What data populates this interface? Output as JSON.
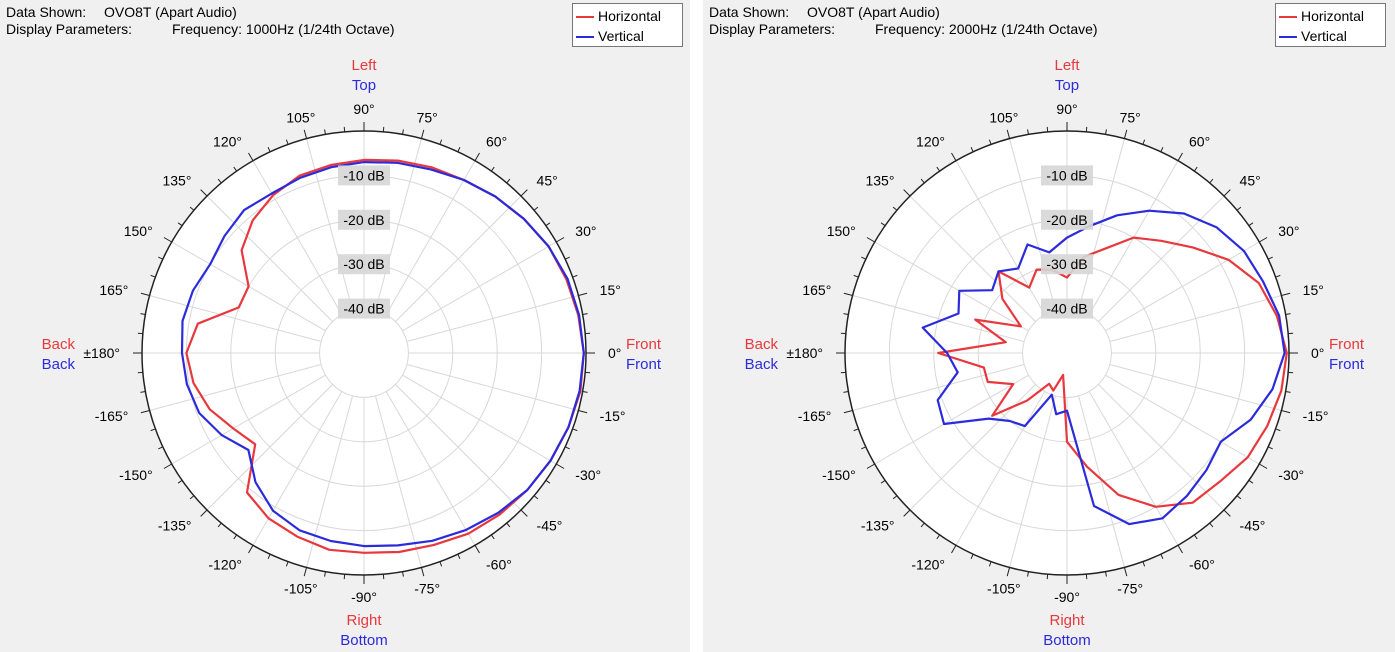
{
  "colors": {
    "horizontal": "#e8383d",
    "vertical": "#2b2bdc",
    "background": "#f0f0f0",
    "plot_face": "#ffffff",
    "grid": "#d8d8d8"
  },
  "header": {
    "data_shown_label": "Data Shown:",
    "display_params_label": "Display Parameters:"
  },
  "chart_data": [
    {
      "type": "polar",
      "data_shown": "OVO8T (Apart Audio)",
      "display_parameters": "Frequency: 1000Hz (1/24th Octave)",
      "legend": [
        {
          "name": "Horizontal",
          "color": "#e8383d"
        },
        {
          "name": "Vertical",
          "color": "#2b2bdc"
        }
      ],
      "direction_labels": {
        "top": [
          {
            "text": "Left",
            "color": "#e8383d"
          },
          {
            "text": "Top",
            "color": "#2b2bdc"
          }
        ],
        "bottom": [
          {
            "text": "Right",
            "color": "#e8383d"
          },
          {
            "text": "Bottom",
            "color": "#2b2bdc"
          }
        ],
        "left": [
          {
            "text": "Back",
            "color": "#e8383d"
          },
          {
            "text": "Back",
            "color": "#2b2bdc"
          }
        ],
        "right": [
          {
            "text": "Front",
            "color": "#e8383d"
          },
          {
            "text": "Front",
            "color": "#2b2bdc"
          }
        ]
      },
      "angle_labels": [
        {
          "deg": 0,
          "text": "0°"
        },
        {
          "deg": 15,
          "text": "15°"
        },
        {
          "deg": 30,
          "text": "30°"
        },
        {
          "deg": 45,
          "text": "45°"
        },
        {
          "deg": 60,
          "text": "60°"
        },
        {
          "deg": 75,
          "text": "75°"
        },
        {
          "deg": 90,
          "text": "90°"
        },
        {
          "deg": 105,
          "text": "105°"
        },
        {
          "deg": 120,
          "text": "120°"
        },
        {
          "deg": 135,
          "text": "135°"
        },
        {
          "deg": 150,
          "text": "150°"
        },
        {
          "deg": 165,
          "text": "165°"
        },
        {
          "deg": 180,
          "text": "±180°"
        },
        {
          "deg": -165,
          "text": "-165°"
        },
        {
          "deg": -150,
          "text": "-150°"
        },
        {
          "deg": -135,
          "text": "-135°"
        },
        {
          "deg": -120,
          "text": "-120°"
        },
        {
          "deg": -105,
          "text": "-105°"
        },
        {
          "deg": -90,
          "text": "-90°"
        },
        {
          "deg": -75,
          "text": "-75°"
        },
        {
          "deg": -60,
          "text": "-60°"
        },
        {
          "deg": -45,
          "text": "-45°"
        },
        {
          "deg": -30,
          "text": "-30°"
        },
        {
          "deg": -15,
          "text": "-15°"
        }
      ],
      "radial_ticks": [
        {
          "db": -10,
          "text": "-10 dB"
        },
        {
          "db": -20,
          "text": "-20 dB"
        },
        {
          "db": -30,
          "text": "-30 dB"
        },
        {
          "db": -40,
          "text": "-40 dB"
        }
      ],
      "r_range_db": [
        -50,
        0
      ],
      "angles": [
        0,
        10,
        20,
        30,
        40,
        50,
        60,
        70,
        80,
        90,
        100,
        110,
        120,
        130,
        140,
        150,
        160,
        170,
        180,
        190,
        200,
        210,
        220,
        230,
        240,
        250,
        260,
        270,
        280,
        290,
        300,
        310,
        320,
        330,
        340,
        350
      ],
      "series": [
        {
          "name": "Horizontal",
          "color": "#e8383d",
          "values": [
            -0.5,
            -1,
            -1.5,
            -2,
            -3,
            -4,
            -5,
            -5.5,
            -6,
            -6.5,
            -7,
            -7.5,
            -9,
            -11,
            -14,
            -20,
            -20,
            -12,
            -10,
            -11,
            -13,
            -16,
            -18,
            -9,
            -7,
            -6,
            -5,
            -5,
            -4.5,
            -4,
            -3,
            -2.5,
            -2,
            -1.5,
            -1,
            -0.5
          ]
        },
        {
          "name": "Vertical",
          "color": "#2b2bdc",
          "values": [
            -0.5,
            -0.8,
            -1.2,
            -2,
            -3,
            -4,
            -5,
            -6,
            -6.5,
            -7,
            -7.5,
            -8,
            -8.5,
            -8,
            -9,
            -10,
            -9,
            -8.5,
            -9,
            -9.5,
            -10.5,
            -13,
            -16,
            -12,
            -9,
            -7.5,
            -7,
            -6.5,
            -6,
            -5,
            -4,
            -3,
            -2,
            -1.5,
            -1,
            -0.7
          ]
        }
      ]
    },
    {
      "type": "polar",
      "data_shown": "OVO8T (Apart Audio)",
      "display_parameters": "Frequency: 2000Hz (1/24th Octave)",
      "legend": [
        {
          "name": "Horizontal",
          "color": "#e8383d"
        },
        {
          "name": "Vertical",
          "color": "#2b2bdc"
        }
      ],
      "direction_labels": {
        "top": [
          {
            "text": "Left",
            "color": "#e8383d"
          },
          {
            "text": "Top",
            "color": "#2b2bdc"
          }
        ],
        "bottom": [
          {
            "text": "Right",
            "color": "#e8383d"
          },
          {
            "text": "Bottom",
            "color": "#2b2bdc"
          }
        ],
        "left": [
          {
            "text": "Back",
            "color": "#e8383d"
          },
          {
            "text": "Back",
            "color": "#2b2bdc"
          }
        ],
        "right": [
          {
            "text": "Front",
            "color": "#e8383d"
          },
          {
            "text": "Front",
            "color": "#2b2bdc"
          }
        ]
      },
      "angle_labels": [
        {
          "deg": 0,
          "text": "0°"
        },
        {
          "deg": 15,
          "text": "15°"
        },
        {
          "deg": 30,
          "text": "30°"
        },
        {
          "deg": 45,
          "text": "45°"
        },
        {
          "deg": 60,
          "text": "60°"
        },
        {
          "deg": 75,
          "text": "75°"
        },
        {
          "deg": 90,
          "text": "90°"
        },
        {
          "deg": 105,
          "text": "105°"
        },
        {
          "deg": 120,
          "text": "120°"
        },
        {
          "deg": 135,
          "text": "135°"
        },
        {
          "deg": 150,
          "text": "150°"
        },
        {
          "deg": 165,
          "text": "165°"
        },
        {
          "deg": 180,
          "text": "±180°"
        },
        {
          "deg": -165,
          "text": "-165°"
        },
        {
          "deg": -150,
          "text": "-150°"
        },
        {
          "deg": -135,
          "text": "-135°"
        },
        {
          "deg": -120,
          "text": "-120°"
        },
        {
          "deg": -105,
          "text": "-105°"
        },
        {
          "deg": -90,
          "text": "-90°"
        },
        {
          "deg": -75,
          "text": "-75°"
        },
        {
          "deg": -60,
          "text": "-60°"
        },
        {
          "deg": -45,
          "text": "-45°"
        },
        {
          "deg": -30,
          "text": "-30°"
        },
        {
          "deg": -15,
          "text": "-15°"
        }
      ],
      "radial_ticks": [
        {
          "db": -10,
          "text": "-10 dB"
        },
        {
          "db": -20,
          "text": "-20 dB"
        },
        {
          "db": -30,
          "text": "-30 dB"
        },
        {
          "db": -40,
          "text": "-40 dB"
        }
      ],
      "r_range_db": [
        -50,
        0
      ],
      "angles": [
        0,
        10,
        20,
        30,
        40,
        50,
        60,
        70,
        80,
        90,
        100,
        110,
        120,
        130,
        140,
        150,
        160,
        170,
        180,
        190,
        200,
        210,
        220,
        230,
        240,
        250,
        260,
        270,
        280,
        290,
        300,
        310,
        320,
        330,
        340,
        350
      ],
      "series": [
        {
          "name": "Horizontal",
          "color": "#e8383d",
          "values": [
            -0.5,
            -2,
            -4,
            -8,
            -13,
            -17,
            -20,
            -25,
            -28,
            -33,
            -31,
            -30,
            -33,
            -26,
            -31,
            -38,
            -28,
            -36,
            -21,
            -31,
            -31,
            -36,
            -28,
            -36,
            -42,
            -41,
            -45,
            -30,
            -24,
            -16,
            -10,
            -6,
            -5,
            -3,
            -2,
            -1
          ]
        },
        {
          "name": "Vertical",
          "color": "#2b2bdc",
          "values": [
            -1,
            -1.5,
            -3,
            -4,
            -6,
            -9,
            -13,
            -17,
            -21,
            -24,
            -27,
            -24,
            -28,
            -26,
            -28,
            -22,
            -24,
            -17,
            -23,
            -25,
            -19,
            -18,
            -27,
            -30,
            -31,
            -40,
            -36,
            -37,
            -15,
            -9,
            -7,
            -8,
            -9,
            -10,
            -6,
            -3
          ]
        }
      ]
    }
  ]
}
